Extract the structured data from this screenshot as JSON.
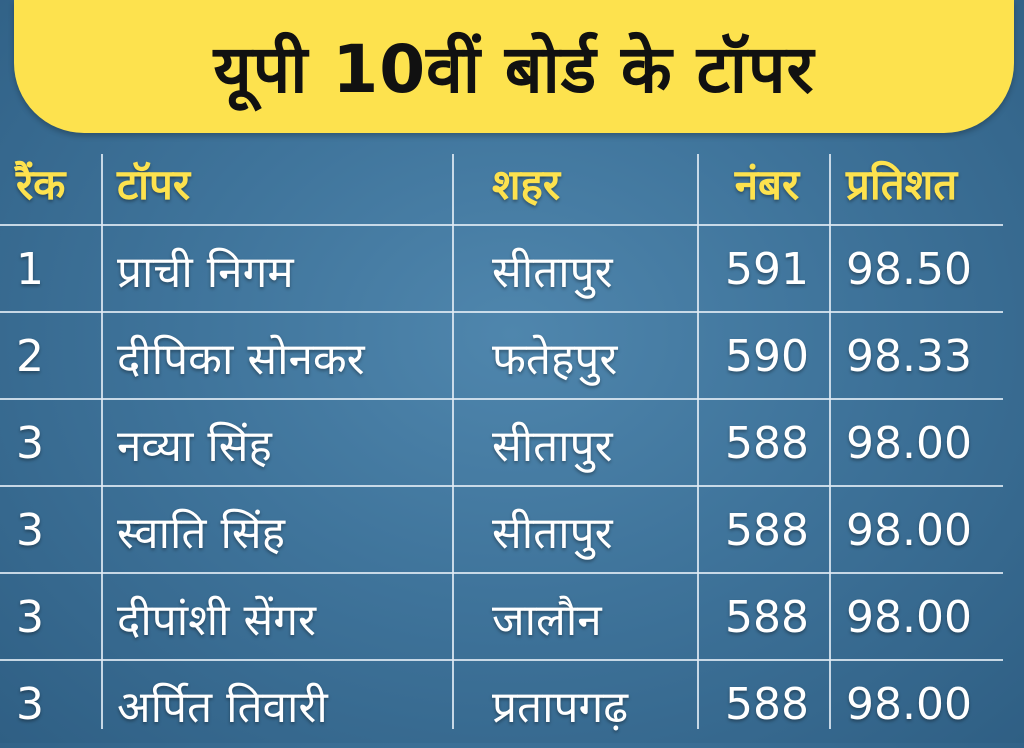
{
  "title": "यूपी 10वीं बोर्ड के टॉपर",
  "headers": {
    "rank": "रैंक",
    "topper": "टॉपर",
    "city": "शहर",
    "marks": "नंबर",
    "percent": "प्रतिशत"
  },
  "rows": [
    {
      "rank": "1",
      "name": "प्राची निगम",
      "city": "सीतापुर",
      "marks": "591",
      "percent": "98.50"
    },
    {
      "rank": "2",
      "name": "दीपिका सोनकर",
      "city": "फतेहपुर",
      "marks": "590",
      "percent": "98.33"
    },
    {
      "rank": "3",
      "name": "नव्या सिंह",
      "city": "सीतापुर",
      "marks": "588",
      "percent": "98.00"
    },
    {
      "rank": "3",
      "name": "स्वाति सिंह",
      "city": "सीतापुर",
      "marks": "588",
      "percent": "98.00"
    },
    {
      "rank": "3",
      "name": "दीपांशी सेंगर",
      "city": "जालौन",
      "marks": "588",
      "percent": "98.00"
    },
    {
      "rank": "3",
      "name": "अर्पित तिवारी",
      "city": "प्रतापगढ़",
      "marks": "588",
      "percent": "98.00"
    }
  ],
  "colors": {
    "banner": "#fde24e",
    "header_text": "#fde24e",
    "cell_text": "#ffffff",
    "background": "#3f749b"
  }
}
